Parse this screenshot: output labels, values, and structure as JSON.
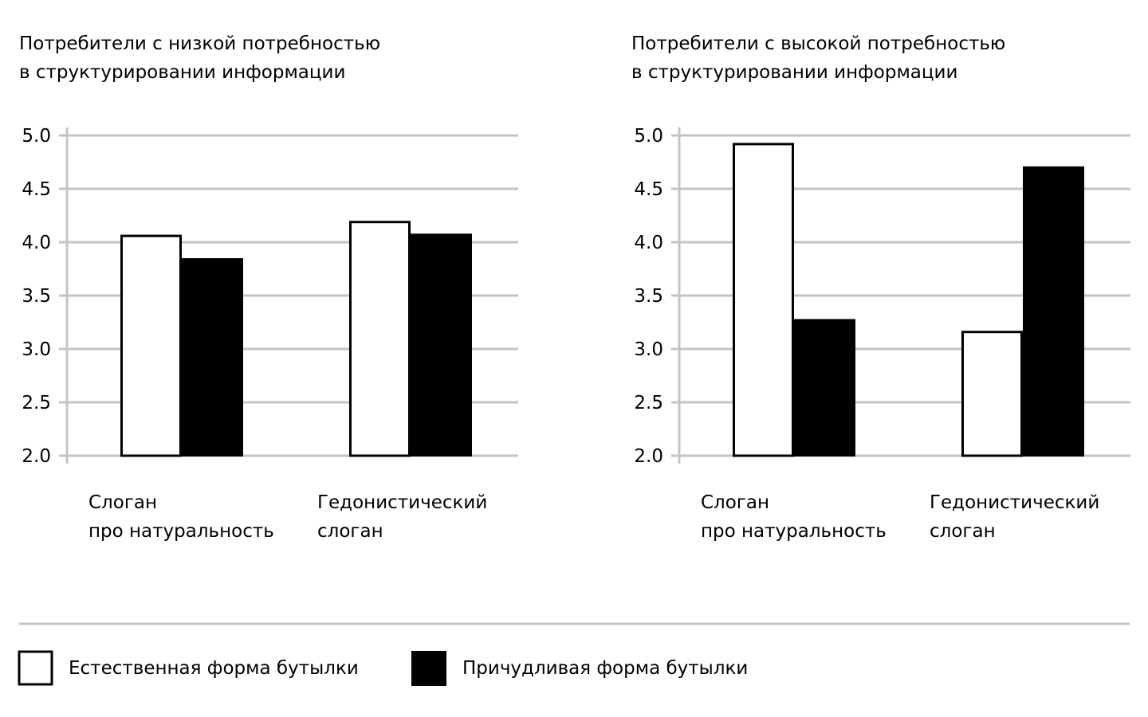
{
  "chart_data": [
    {
      "type": "bar",
      "title": [
        "Потребители с низкой потребностью",
        "в структурировании информации"
      ],
      "categories": [
        [
          "Слоган",
          "про натуральность"
        ],
        [
          "Гедонистический",
          "слоган"
        ]
      ],
      "series": [
        {
          "name": "Естественная форма бутылки",
          "color": "#ffffff",
          "values": [
            4.07,
            4.2
          ]
        },
        {
          "name": "Причудливая форма бутылки",
          "color": "#000000",
          "values": [
            3.85,
            4.08
          ]
        }
      ],
      "yticks": [
        "2.0",
        "2.5",
        "3.0",
        "3.5",
        "4.0",
        "4.5",
        "5.0"
      ],
      "ylim": [
        2.0,
        5.0
      ],
      "grid": true,
      "xlabel": "",
      "ylabel": ""
    },
    {
      "type": "bar",
      "title": [
        "Потребители с высокой потребностью",
        "в структурировании информации"
      ],
      "categories": [
        [
          "Слоган",
          "про натуральность"
        ],
        [
          "Гедонистический",
          "слоган"
        ]
      ],
      "series": [
        {
          "name": "Естественная форма бутылки",
          "color": "#ffffff",
          "values": [
            4.93,
            3.17
          ]
        },
        {
          "name": "Причудливая форма бутылки",
          "color": "#000000",
          "values": [
            3.28,
            4.71
          ]
        }
      ],
      "yticks": [
        "2.0",
        "2.5",
        "3.0",
        "3.5",
        "4.0",
        "4.5",
        "5.0"
      ],
      "ylim": [
        2.0,
        5.0
      ],
      "grid": true,
      "xlabel": "",
      "ylabel": ""
    }
  ],
  "legend": {
    "placement": "bottom",
    "items": [
      {
        "label": "Естественная форма бутылки",
        "color": "#ffffff"
      },
      {
        "label": "Причудливая форма бутылки",
        "color": "#000000"
      }
    ]
  },
  "colors": {
    "grid": "#c4c4c4",
    "bar_outline": "#000000"
  }
}
